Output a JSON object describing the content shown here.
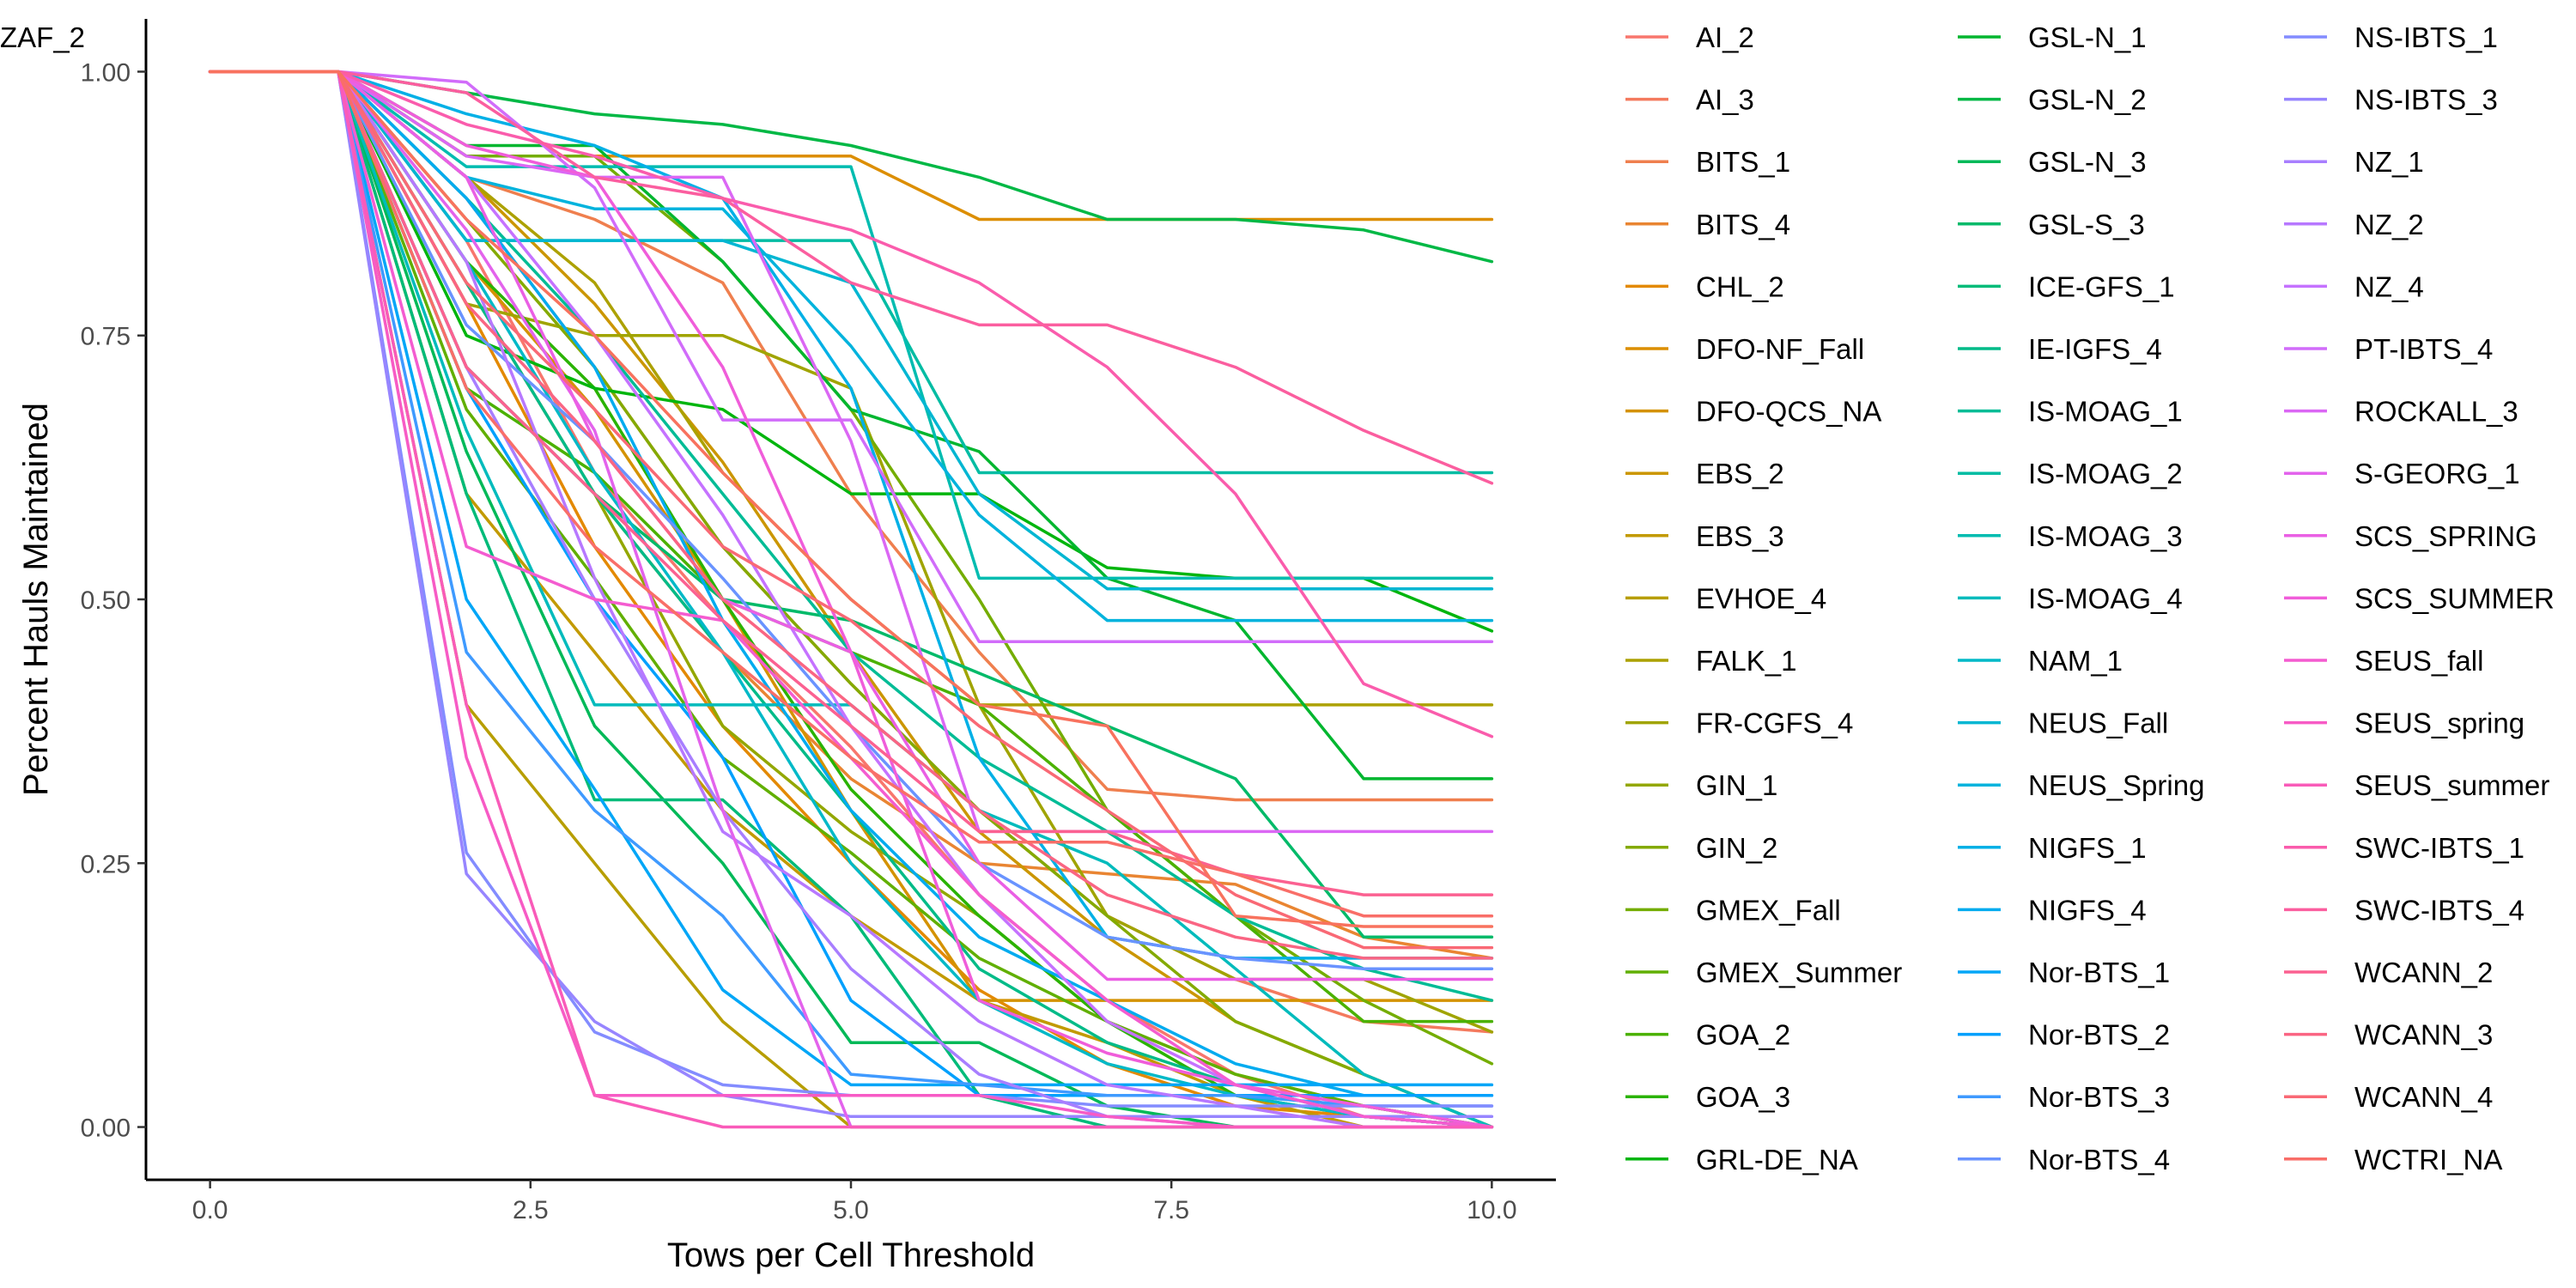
{
  "chart_data": {
    "type": "line",
    "xlabel": "Tows per Cell Threshold",
    "ylabel": "Percent Hauls Maintained",
    "xlim": [
      -0.5,
      10.5
    ],
    "ylim": [
      -0.05,
      1.05
    ],
    "x_ticks": [
      0.0,
      2.5,
      5.0,
      7.5,
      10.0
    ],
    "x_tick_labels": [
      "0.0",
      "2.5",
      "5.0",
      "7.5",
      "10.0"
    ],
    "y_ticks": [
      0.0,
      0.25,
      0.5,
      0.75,
      1.0
    ],
    "y_tick_labels": [
      "0.00",
      "0.25",
      "0.50",
      "0.75",
      "1.00"
    ],
    "grid": false,
    "legend": "right, three columns",
    "x": [
      0,
      1,
      2,
      3,
      4,
      5,
      6,
      7,
      8,
      9,
      10
    ],
    "series": [
      {
        "name": "AI_2",
        "color": "#F8766D",
        "values": [
          1,
          1,
          0.84,
          0.62,
          0.48,
          0.36,
          0.22,
          0.12,
          0.05,
          0.01,
          0.0
        ]
      },
      {
        "name": "AI_3",
        "color": "#F47A5E",
        "values": [
          1,
          1,
          0.88,
          0.72,
          0.55,
          0.42,
          0.3,
          0.2,
          0.14,
          0.1,
          0.09
        ]
      },
      {
        "name": "BITS_1",
        "color": "#EF7F4E",
        "values": [
          1,
          1,
          0.9,
          0.86,
          0.8,
          0.6,
          0.45,
          0.32,
          0.31,
          0.31,
          0.31
        ]
      },
      {
        "name": "BITS_4",
        "color": "#E98532",
        "values": [
          1,
          1,
          0.8,
          0.6,
          0.45,
          0.33,
          0.25,
          0.24,
          0.23,
          0.18,
          0.16
        ]
      },
      {
        "name": "CHL_2",
        "color": "#E38900",
        "values": [
          1,
          1,
          0.78,
          0.55,
          0.38,
          0.25,
          0.13,
          0.06,
          0.02,
          0.01,
          0.0
        ]
      },
      {
        "name": "DFO-NF_Fall",
        "color": "#DC8E00",
        "values": [
          1,
          1,
          0.92,
          0.92,
          0.92,
          0.92,
          0.86,
          0.86,
          0.86,
          0.86,
          0.86
        ]
      },
      {
        "name": "DFO-QCS_NA",
        "color": "#D49200",
        "values": [
          1,
          1,
          0.82,
          0.68,
          0.5,
          0.3,
          0.12,
          0.12,
          0.12,
          0.12,
          0.12
        ]
      },
      {
        "name": "EBS_2",
        "color": "#CB9600",
        "values": [
          1,
          1,
          0.9,
          0.78,
          0.63,
          0.45,
          0.28,
          0.18,
          0.1,
          0.05,
          0.0
        ]
      },
      {
        "name": "EBS_3",
        "color": "#C29A00",
        "values": [
          1,
          1,
          0.6,
          0.45,
          0.3,
          0.2,
          0.12,
          0.08,
          0.03,
          0.0,
          0.0
        ]
      },
      {
        "name": "EVHOE_4",
        "color": "#B79E00",
        "values": [
          1,
          1,
          0.4,
          0.25,
          0.1,
          0.0,
          0.0,
          0.0,
          0.0,
          0.0,
          0.0
        ]
      },
      {
        "name": "FALK_1",
        "color": "#ACA100",
        "values": [
          1,
          1,
          0.9,
          0.8,
          0.62,
          0.5,
          0.4,
          0.4,
          0.4,
          0.4,
          0.4
        ]
      },
      {
        "name": "FR-CGFS_4",
        "color": "#A0A400",
        "values": [
          1,
          1,
          0.78,
          0.75,
          0.75,
          0.7,
          0.4,
          0.2,
          0.14,
          0.14,
          0.09
        ]
      },
      {
        "name": "GIN_1",
        "color": "#93A700",
        "values": [
          1,
          1,
          0.72,
          0.6,
          0.38,
          0.28,
          0.2,
          0.1,
          0.05,
          0.02,
          0.0
        ]
      },
      {
        "name": "GIN_2",
        "color": "#84AA00",
        "values": [
          1,
          1,
          0.86,
          0.72,
          0.55,
          0.42,
          0.3,
          0.2,
          0.1,
          0.05,
          0.0
        ]
      },
      {
        "name": "GMEX_Fall",
        "color": "#74AD00",
        "values": [
          1,
          1,
          0.92,
          0.92,
          0.82,
          0.68,
          0.5,
          0.3,
          0.2,
          0.12,
          0.06
        ]
      },
      {
        "name": "GMEX_Summer",
        "color": "#61AF00",
        "values": [
          1,
          1,
          0.68,
          0.52,
          0.35,
          0.26,
          0.16,
          0.1,
          0.05,
          0.02,
          0.0
        ]
      },
      {
        "name": "GOA_2",
        "color": "#4BB100",
        "values": [
          1,
          1,
          0.7,
          0.62,
          0.5,
          0.45,
          0.4,
          0.3,
          0.2,
          0.1,
          0.1
        ]
      },
      {
        "name": "GOA_3",
        "color": "#2AB300",
        "values": [
          1,
          1,
          0.82,
          0.7,
          0.5,
          0.32,
          0.2,
          0.1,
          0.03,
          0.01,
          0.0
        ]
      },
      {
        "name": "GRL-DE_NA",
        "color": "#00B50D",
        "values": [
          1,
          1,
          0.75,
          0.7,
          0.68,
          0.6,
          0.6,
          0.53,
          0.52,
          0.52,
          0.47
        ]
      },
      {
        "name": "GSL-N_1",
        "color": "#00B62F",
        "values": [
          1,
          1,
          0.93,
          0.93,
          0.82,
          0.68,
          0.64,
          0.52,
          0.48,
          0.33,
          0.33
        ]
      },
      {
        "name": "GSL-N_2",
        "color": "#00B845",
        "values": [
          1,
          1,
          0.98,
          0.96,
          0.95,
          0.93,
          0.9,
          0.86,
          0.86,
          0.85,
          0.82
        ]
      },
      {
        "name": "GSL-N_3",
        "color": "#00B958",
        "values": [
          1,
          1,
          0.64,
          0.38,
          0.25,
          0.08,
          0.08,
          0.02,
          0.0,
          0.0,
          0.0
        ]
      },
      {
        "name": "GSL-S_3",
        "color": "#00BA69",
        "values": [
          1,
          1,
          0.72,
          0.6,
          0.5,
          0.48,
          0.43,
          0.38,
          0.33,
          0.18,
          0.18
        ]
      },
      {
        "name": "ICE-GFS_1",
        "color": "#00BB79",
        "values": [
          1,
          1,
          0.6,
          0.31,
          0.31,
          0.2,
          0.03,
          0.0,
          0.0,
          0.0,
          0.0
        ]
      },
      {
        "name": "IE-IGFS_4",
        "color": "#00BB88",
        "values": [
          1,
          1,
          0.8,
          0.6,
          0.45,
          0.3,
          0.15,
          0.08,
          0.04,
          0.01,
          0.0
        ]
      },
      {
        "name": "IS-MOAG_1",
        "color": "#00BC96",
        "values": [
          1,
          1,
          0.88,
          0.75,
          0.6,
          0.45,
          0.35,
          0.28,
          0.2,
          0.15,
          0.12
        ]
      },
      {
        "name": "IS-MOAG_2",
        "color": "#00BCA3",
        "values": [
          1,
          1,
          0.84,
          0.84,
          0.84,
          0.84,
          0.62,
          0.62,
          0.62,
          0.62,
          0.62
        ]
      },
      {
        "name": "IS-MOAG_3",
        "color": "#00BCB0",
        "values": [
          1,
          1,
          0.91,
          0.91,
          0.91,
          0.91,
          0.52,
          0.52,
          0.52,
          0.52,
          0.52
        ]
      },
      {
        "name": "IS-MOAG_4",
        "color": "#00BBBC",
        "values": [
          1,
          1,
          0.66,
          0.4,
          0.4,
          0.4,
          0.3,
          0.25,
          0.15,
          0.05,
          0.0
        ]
      },
      {
        "name": "NAM_1",
        "color": "#00B9C7",
        "values": [
          1,
          1,
          0.82,
          0.62,
          0.45,
          0.25,
          0.12,
          0.06,
          0.03,
          0.01,
          0.0
        ]
      },
      {
        "name": "NEUS_Fall",
        "color": "#00B6D2",
        "values": [
          1,
          1,
          0.84,
          0.84,
          0.84,
          0.8,
          0.6,
          0.51,
          0.51,
          0.51,
          0.51
        ]
      },
      {
        "name": "NEUS_Spring",
        "color": "#00B3DD",
        "values": [
          1,
          1,
          0.9,
          0.87,
          0.87,
          0.74,
          0.58,
          0.48,
          0.48,
          0.48,
          0.48
        ]
      },
      {
        "name": "NIGFS_1",
        "color": "#00B0E6",
        "values": [
          1,
          1,
          0.96,
          0.93,
          0.88,
          0.7,
          0.35,
          0.18,
          0.16,
          0.16,
          0.16
        ]
      },
      {
        "name": "NIGFS_4",
        "color": "#00ABEF",
        "values": [
          1,
          1,
          0.88,
          0.72,
          0.48,
          0.3,
          0.18,
          0.12,
          0.06,
          0.03,
          0.03
        ]
      },
      {
        "name": "Nor-BTS_1",
        "color": "#00A6F7",
        "values": [
          1,
          1,
          0.5,
          0.32,
          0.13,
          0.04,
          0.04,
          0.04,
          0.04,
          0.04,
          0.04
        ]
      },
      {
        "name": "Nor-BTS_2",
        "color": "#00A0FD",
        "values": [
          1,
          1,
          0.7,
          0.5,
          0.35,
          0.12,
          0.03,
          0.03,
          0.03,
          0.03,
          0.03
        ]
      },
      {
        "name": "Nor-BTS_3",
        "color": "#3F9AFF",
        "values": [
          1,
          1,
          0.45,
          0.3,
          0.2,
          0.05,
          0.04,
          0.03,
          0.03,
          0.02,
          0.02
        ]
      },
      {
        "name": "Nor-BTS_4",
        "color": "#6993FF",
        "values": [
          1,
          1,
          0.76,
          0.65,
          0.52,
          0.38,
          0.25,
          0.18,
          0.16,
          0.15,
          0.15
        ]
      },
      {
        "name": "NS-IBTS_1",
        "color": "#838CFF",
        "values": [
          1,
          1,
          0.26,
          0.09,
          0.04,
          0.03,
          0.03,
          0.02,
          0.02,
          0.02,
          0.02
        ]
      },
      {
        "name": "NS-IBTS_3",
        "color": "#9785FF",
        "values": [
          1,
          1,
          0.24,
          0.1,
          0.03,
          0.01,
          0.01,
          0.01,
          0.01,
          0.01,
          0.01
        ]
      },
      {
        "name": "NZ_1",
        "color": "#A87EFF",
        "values": [
          1,
          1,
          0.72,
          0.5,
          0.3,
          0.15,
          0.05,
          0.01,
          0.0,
          0.0,
          0.0
        ]
      },
      {
        "name": "NZ_2",
        "color": "#B778FF",
        "values": [
          1,
          1,
          0.82,
          0.52,
          0.28,
          0.2,
          0.1,
          0.04,
          0.02,
          0.0,
          0.0
        ]
      },
      {
        "name": "NZ_4",
        "color": "#C572FF",
        "values": [
          1,
          1,
          0.9,
          0.75,
          0.58,
          0.38,
          0.22,
          0.1,
          0.04,
          0.01,
          0.0
        ]
      },
      {
        "name": "PT-IBTS_4",
        "color": "#D16CFA",
        "values": [
          1,
          1,
          0.99,
          0.89,
          0.67,
          0.67,
          0.46,
          0.46,
          0.46,
          0.46,
          0.46
        ]
      },
      {
        "name": "ROCKALL_3",
        "color": "#DB67F4",
        "values": [
          1,
          1,
          0.92,
          0.9,
          0.9,
          0.65,
          0.28,
          0.28,
          0.28,
          0.28,
          0.28
        ]
      },
      {
        "name": "S-GEORG_1",
        "color": "#E363EC",
        "values": [
          1,
          1,
          0.85,
          0.66,
          0.3,
          0.0,
          0.0,
          0.0,
          0.0,
          0.0,
          0.0
        ]
      },
      {
        "name": "SCS_SPRING",
        "color": "#EA5FE4",
        "values": [
          1,
          1,
          0.9,
          0.65,
          0.5,
          0.45,
          0.25,
          0.14,
          0.14,
          0.14,
          0.14
        ]
      },
      {
        "name": "SCS_SUMMER",
        "color": "#F05DDA",
        "values": [
          1,
          1,
          0.93,
          0.9,
          0.72,
          0.45,
          0.12,
          0.07,
          0.04,
          0.02,
          0.0
        ]
      },
      {
        "name": "SEUS_fall",
        "color": "#F45CD0",
        "values": [
          1,
          1,
          0.55,
          0.5,
          0.48,
          0.35,
          0.22,
          0.12,
          0.04,
          0.01,
          0.0
        ]
      },
      {
        "name": "SEUS_spring",
        "color": "#F75BC5",
        "values": [
          1,
          1,
          0.35,
          0.03,
          0.03,
          0.03,
          0.03,
          0.01,
          0.0,
          0.0,
          0.0
        ]
      },
      {
        "name": "SEUS_summer",
        "color": "#F95BB9",
        "values": [
          1,
          1,
          0.4,
          0.03,
          0.0,
          0.0,
          0.0,
          0.0,
          0.0,
          0.0,
          0.0
        ]
      },
      {
        "name": "SWC-IBTS_1",
        "color": "#FA5CAC",
        "values": [
          1,
          1,
          0.95,
          0.92,
          0.88,
          0.85,
          0.8,
          0.72,
          0.6,
          0.42,
          0.37
        ]
      },
      {
        "name": "SWC-IBTS_4",
        "color": "#FB5E9F",
        "values": [
          1,
          1,
          0.98,
          0.9,
          0.88,
          0.8,
          0.76,
          0.76,
          0.72,
          0.66,
          0.61
        ]
      },
      {
        "name": "WCANN_2",
        "color": "#FB6191",
        "values": [
          1,
          1,
          0.72,
          0.6,
          0.48,
          0.38,
          0.28,
          0.28,
          0.24,
          0.22,
          0.22
        ]
      },
      {
        "name": "WCANN_3",
        "color": "#FA6583",
        "values": [
          1,
          1,
          0.78,
          0.65,
          0.5,
          0.4,
          0.3,
          0.22,
          0.18,
          0.16,
          0.16
        ]
      },
      {
        "name": "WCANN_4",
        "color": "#F96975",
        "values": [
          1,
          1,
          0.8,
          0.68,
          0.55,
          0.48,
          0.38,
          0.3,
          0.22,
          0.17,
          0.17
        ]
      },
      {
        "name": "WCTRI_NA",
        "color": "#F96E68",
        "values": [
          1,
          1,
          0.7,
          0.55,
          0.45,
          0.35,
          0.27,
          0.27,
          0.24,
          0.2,
          0.2
        ]
      },
      {
        "name": "ZAF_2",
        "color": "#F8725E",
        "values": [
          1,
          1,
          0.86,
          0.75,
          0.62,
          0.5,
          0.4,
          0.38,
          0.2,
          0.19,
          0.19
        ]
      }
    ]
  }
}
